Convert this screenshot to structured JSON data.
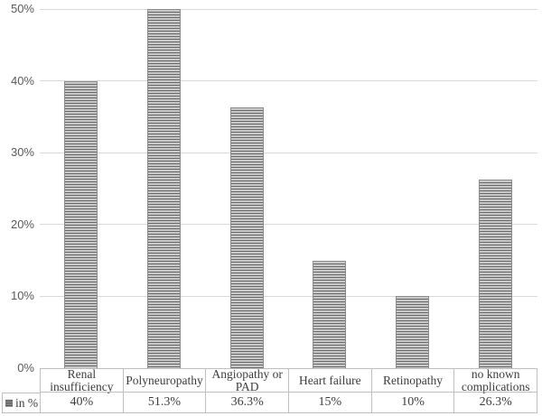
{
  "chart_data": {
    "type": "bar",
    "categories": [
      "Renal insufficiency",
      "Polyneuropathy",
      "Angiopathy or PAD",
      "Heart failure",
      "Retinopathy",
      "no known complications"
    ],
    "series": [
      {
        "name": "in %",
        "values": [
          40,
          51.3,
          36.3,
          15,
          10,
          26.3
        ]
      }
    ],
    "value_labels": [
      "40%",
      "51.3%",
      "36.3%",
      "15%",
      "10%",
      "26.3%"
    ],
    "title": "",
    "xlabel": "",
    "ylabel": "",
    "ylim": [
      0,
      50
    ],
    "ytick_labels": [
      "0%",
      "10%",
      "20%",
      "30%",
      "40%",
      "50%"
    ],
    "ytick_values": [
      0,
      10,
      20,
      30,
      40,
      50
    ],
    "grid": true,
    "legend_label": "in %",
    "data_table_shown": true,
    "note": "Polyneuropathy bar (51.3%) is clipped at the 50% axis maximum",
    "colors": {
      "bar_stripe_light": "#c8c8c8",
      "bar_stripe_dark": "#6a6a6a",
      "bar_border": "#8c8c8c",
      "gridline": "#d9d9d9",
      "table_border": "#bfbfbf",
      "axis_text": "#595959",
      "table_text": "#3d3d3d",
      "background": "#ffffff"
    }
  }
}
